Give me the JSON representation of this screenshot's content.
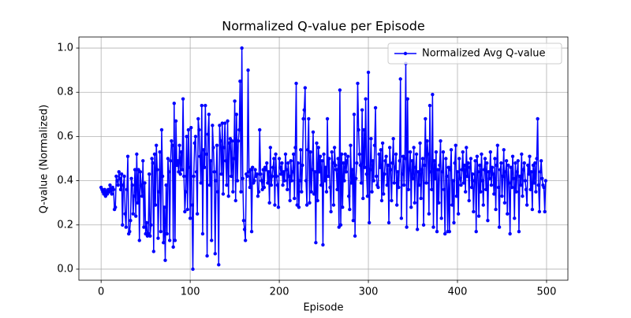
{
  "chart_data": {
    "type": "line",
    "title": "Normalized Q-value per Episode",
    "xlabel": "Episode",
    "ylabel": "Q-value (Normalized)",
    "xlim": [
      -24.95,
      523.95
    ],
    "ylim": [
      -0.05,
      1.05
    ],
    "xticks": [
      0,
      100,
      200,
      300,
      400,
      500
    ],
    "yticks": [
      {
        "value": 0,
        "label": "0.0"
      },
      0.2,
      0.4,
      0.6,
      0.8,
      {
        "value": 1,
        "label": "1.0"
      }
    ],
    "grid": true,
    "legend": "upper right",
    "x": [
      0,
      1,
      2,
      3,
      4,
      5,
      6,
      7,
      8,
      9,
      10,
      11,
      12,
      13,
      14,
      15,
      16,
      17,
      18,
      19,
      20,
      21,
      22,
      23,
      24,
      25,
      26,
      27,
      28,
      29,
      30,
      31,
      32,
      33,
      34,
      35,
      36,
      37,
      38,
      39,
      40,
      41,
      42,
      43,
      44,
      45,
      46,
      47,
      48,
      49,
      50,
      51,
      52,
      53,
      54,
      55,
      56,
      57,
      58,
      59,
      60,
      61,
      62,
      63,
      64,
      65,
      66,
      67,
      68,
      69,
      70,
      71,
      72,
      73,
      74,
      75,
      76,
      77,
      78,
      79,
      80,
      81,
      82,
      83,
      84,
      85,
      86,
      87,
      88,
      89,
      90,
      91,
      92,
      93,
      94,
      95,
      96,
      97,
      98,
      99,
      100,
      101,
      102,
      103,
      104,
      105,
      106,
      107,
      108,
      109,
      110,
      111,
      112,
      113,
      114,
      115,
      116,
      117,
      118,
      119,
      120,
      121,
      122,
      123,
      124,
      125,
      126,
      127,
      128,
      129,
      130,
      131,
      132,
      133,
      134,
      135,
      136,
      137,
      138,
      139,
      140,
      141,
      142,
      143,
      144,
      145,
      146,
      147,
      148,
      149,
      150,
      151,
      152,
      153,
      154,
      155,
      156,
      157,
      158,
      159,
      160,
      161,
      162,
      163,
      164,
      165,
      166,
      167,
      168,
      169,
      170,
      171,
      172,
      173,
      174,
      175,
      176,
      177,
      178,
      179,
      180,
      181,
      182,
      183,
      184,
      185,
      186,
      187,
      188,
      189,
      190,
      191,
      192,
      193,
      194,
      195,
      196,
      197,
      198,
      199,
      200,
      201,
      202,
      203,
      204,
      205,
      206,
      207,
      208,
      209,
      210,
      211,
      212,
      213,
      214,
      215,
      216,
      217,
      218,
      219,
      220,
      221,
      222,
      223,
      224,
      225,
      226,
      227,
      228,
      229,
      230,
      231,
      232,
      233,
      234,
      235,
      236,
      237,
      238,
      239,
      240,
      241,
      242,
      243,
      244,
      245,
      246,
      247,
      248,
      249,
      250,
      251,
      252,
      253,
      254,
      255,
      256,
      257,
      258,
      259,
      260,
      261,
      262,
      263,
      264,
      265,
      266,
      267,
      268,
      269,
      270,
      271,
      272,
      273,
      274,
      275,
      276,
      277,
      278,
      279,
      280,
      281,
      282,
      283,
      284,
      285,
      286,
      287,
      288,
      289,
      290,
      291,
      292,
      293,
      294,
      295,
      296,
      297,
      298,
      299,
      300,
      301,
      302,
      303,
      304,
      305,
      306,
      307,
      308,
      309,
      310,
      311,
      312,
      313,
      314,
      315,
      316,
      317,
      318,
      319,
      320,
      321,
      322,
      323,
      324,
      325,
      326,
      327,
      328,
      329,
      330,
      331,
      332,
      333,
      334,
      335,
      336,
      337,
      338,
      339,
      340,
      341,
      342,
      343,
      344,
      345,
      346,
      347,
      348,
      349,
      350,
      351,
      352,
      353,
      354,
      355,
      356,
      357,
      358,
      359,
      360,
      361,
      362,
      363,
      364,
      365,
      366,
      367,
      368,
      369,
      370,
      371,
      372,
      373,
      374,
      375,
      376,
      377,
      378,
      379,
      380,
      381,
      382,
      383,
      384,
      385,
      386,
      387,
      388,
      389,
      390,
      391,
      392,
      393,
      394,
      395,
      396,
      397,
      398,
      399,
      400,
      401,
      402,
      403,
      404,
      405,
      406,
      407,
      408,
      409,
      410,
      411,
      412,
      413,
      414,
      415,
      416,
      417,
      418,
      419,
      420,
      421,
      422,
      423,
      424,
      425,
      426,
      427,
      428,
      429,
      430,
      431,
      432,
      433,
      434,
      435,
      436,
      437,
      438,
      439,
      440,
      441,
      442,
      443,
      444,
      445,
      446,
      447,
      448,
      449,
      450,
      451,
      452,
      453,
      454,
      455,
      456,
      457,
      458,
      459,
      460,
      461,
      462,
      463,
      464,
      465,
      466,
      467,
      468,
      469,
      470,
      471,
      472,
      473,
      474,
      475,
      476,
      477,
      478,
      479,
      480,
      481,
      482,
      483,
      484,
      485,
      486,
      487,
      488,
      489,
      490,
      491,
      492,
      493,
      494,
      495,
      496,
      497,
      498,
      499
    ],
    "series": [
      {
        "name": "Normalized Avg Q-value",
        "color": "#0000ff",
        "values": [
          0.37,
          0.36,
          0.35,
          0.34,
          0.36,
          0.33,
          0.35,
          0.34,
          0.36,
          0.35,
          0.38,
          0.36,
          0.34,
          0.37,
          0.36,
          0.27,
          0.28,
          0.42,
          0.4,
          0.38,
          0.44,
          0.41,
          0.36,
          0.43,
          0.2,
          0.38,
          0.42,
          0.25,
          0.19,
          0.36,
          0.51,
          0.16,
          0.17,
          0.22,
          0.41,
          0.38,
          0.25,
          0.33,
          0.45,
          0.24,
          0.52,
          0.3,
          0.45,
          0.13,
          0.44,
          0.38,
          0.33,
          0.49,
          0.19,
          0.39,
          0.16,
          0.21,
          0.15,
          0.16,
          0.43,
          0.15,
          0.2,
          0.5,
          0.48,
          0.08,
          0.52,
          0.29,
          0.56,
          0.45,
          0.14,
          0.35,
          0.53,
          0.17,
          0.63,
          0.42,
          0.12,
          0.28,
          0.04,
          0.38,
          0.16,
          0.5,
          0.44,
          0.13,
          0.49,
          0.58,
          0.56,
          0.1,
          0.75,
          0.13,
          0.67,
          0.47,
          0.49,
          0.44,
          0.56,
          0.43,
          0.53,
          0.45,
          0.77,
          0.42,
          0.26,
          0.35,
          0.6,
          0.27,
          0.63,
          0.46,
          0.23,
          0.64,
          0.29,
          0.0,
          0.42,
          0.57,
          0.6,
          0.44,
          0.25,
          0.68,
          0.63,
          0.51,
          0.39,
          0.74,
          0.16,
          0.54,
          0.46,
          0.74,
          0.52,
          0.06,
          0.61,
          0.7,
          0.38,
          0.49,
          0.13,
          0.65,
          0.55,
          0.44,
          0.07,
          0.4,
          0.56,
          0.35,
          0.02,
          0.65,
          0.58,
          0.43,
          0.66,
          0.34,
          0.55,
          0.66,
          0.49,
          0.38,
          0.67,
          0.33,
          0.57,
          0.59,
          0.42,
          0.58,
          0.35,
          0.5,
          0.76,
          0.31,
          0.7,
          0.4,
          0.58,
          0.63,
          0.85,
          0.35,
          1.0,
          0.41,
          0.22,
          0.18,
          0.13,
          0.43,
          0.42,
          0.9,
          0.44,
          0.37,
          0.45,
          0.17,
          0.46,
          0.39,
          0.4,
          0.45,
          0.42,
          0.43,
          0.33,
          0.35,
          0.63,
          0.43,
          0.4,
          0.36,
          0.45,
          0.37,
          0.46,
          0.45,
          0.48,
          0.39,
          0.44,
          0.3,
          0.55,
          0.38,
          0.42,
          0.46,
          0.5,
          0.29,
          0.52,
          0.42,
          0.38,
          0.28,
          0.5,
          0.46,
          0.43,
          0.48,
          0.38,
          0.44,
          0.4,
          0.52,
          0.45,
          0.36,
          0.48,
          0.42,
          0.31,
          0.49,
          0.4,
          0.44,
          0.52,
          0.32,
          0.55,
          0.84,
          0.29,
          0.48,
          0.28,
          0.4,
          0.54,
          0.35,
          0.47,
          0.68,
          0.72,
          0.82,
          0.4,
          0.29,
          0.54,
          0.68,
          0.3,
          0.53,
          0.35,
          0.45,
          0.62,
          0.34,
          0.44,
          0.12,
          0.57,
          0.31,
          0.55,
          0.44,
          0.51,
          0.38,
          0.49,
          0.11,
          0.52,
          0.4,
          0.46,
          0.35,
          0.68,
          0.42,
          0.5,
          0.37,
          0.26,
          0.53,
          0.48,
          0.29,
          0.55,
          0.47,
          0.45,
          0.36,
          0.5,
          0.19,
          0.81,
          0.2,
          0.52,
          0.28,
          0.48,
          0.4,
          0.52,
          0.44,
          0.49,
          0.51,
          0.33,
          0.27,
          0.56,
          0.39,
          0.45,
          0.22,
          0.7,
          0.15,
          0.41,
          0.48,
          0.84,
          0.63,
          0.52,
          0.47,
          0.39,
          0.72,
          0.32,
          0.63,
          0.46,
          0.77,
          0.43,
          0.33,
          0.89,
          0.21,
          0.45,
          0.59,
          0.35,
          0.49,
          0.4,
          0.56,
          0.73,
          0.42,
          0.38,
          0.37,
          0.52,
          0.46,
          0.54,
          0.31,
          0.57,
          0.34,
          0.43,
          0.49,
          0.51,
          0.38,
          0.47,
          0.21,
          0.55,
          0.45,
          0.31,
          0.48,
          0.59,
          0.39,
          0.46,
          0.52,
          0.29,
          0.44,
          0.37,
          0.49,
          0.86,
          0.23,
          0.43,
          0.51,
          0.38,
          0.5,
          0.93,
          0.19,
          0.77,
          0.36,
          0.45,
          0.53,
          0.28,
          0.49,
          0.41,
          0.55,
          0.3,
          0.46,
          0.52,
          0.18,
          0.44,
          0.38,
          0.57,
          0.32,
          0.45,
          0.5,
          0.2,
          0.47,
          0.68,
          0.39,
          0.58,
          0.52,
          0.25,
          0.74,
          0.44,
          0.36,
          0.79,
          0.19,
          0.49,
          0.41,
          0.53,
          0.17,
          0.45,
          0.3,
          0.47,
          0.58,
          0.23,
          0.44,
          0.53,
          0.36,
          0.16,
          0.5,
          0.42,
          0.17,
          0.46,
          0.17,
          0.45,
          0.54,
          0.29,
          0.4,
          0.21,
          0.48,
          0.56,
          0.33,
          0.44,
          0.25,
          0.5,
          0.41,
          0.38,
          0.45,
          0.53,
          0.39,
          0.47,
          0.35,
          0.55,
          0.42,
          0.48,
          0.31,
          0.46,
          0.5,
          0.37,
          0.43,
          0.26,
          0.4,
          0.49,
          0.17,
          0.51,
          0.44,
          0.24,
          0.47,
          0.35,
          0.52,
          0.4,
          0.29,
          0.45,
          0.5,
          0.36,
          0.48,
          0.22,
          0.44,
          0.41,
          0.53,
          0.38,
          0.46,
          0.43,
          0.34,
          0.5,
          0.27,
          0.47,
          0.56,
          0.37,
          0.19,
          0.45,
          0.48,
          0.33,
          0.42,
          0.54,
          0.3,
          0.44,
          0.49,
          0.25,
          0.47,
          0.39,
          0.16,
          0.46,
          0.37,
          0.51,
          0.41,
          0.23,
          0.48,
          0.35,
          0.44,
          0.49,
          0.17,
          0.42,
          0.38,
          0.52,
          0.33,
          0.45,
          0.48,
          0.4,
          0.36,
          0.29,
          0.47,
          0.43,
          0.51,
          0.36,
          0.44,
          0.27,
          0.47,
          0.39,
          0.48,
          0.35,
          0.5,
          0.68,
          0.38,
          0.26,
          0.44,
          0.49,
          0.41,
          0.38,
          0.37,
          0.26,
          0.4
        ]
      }
    ]
  }
}
